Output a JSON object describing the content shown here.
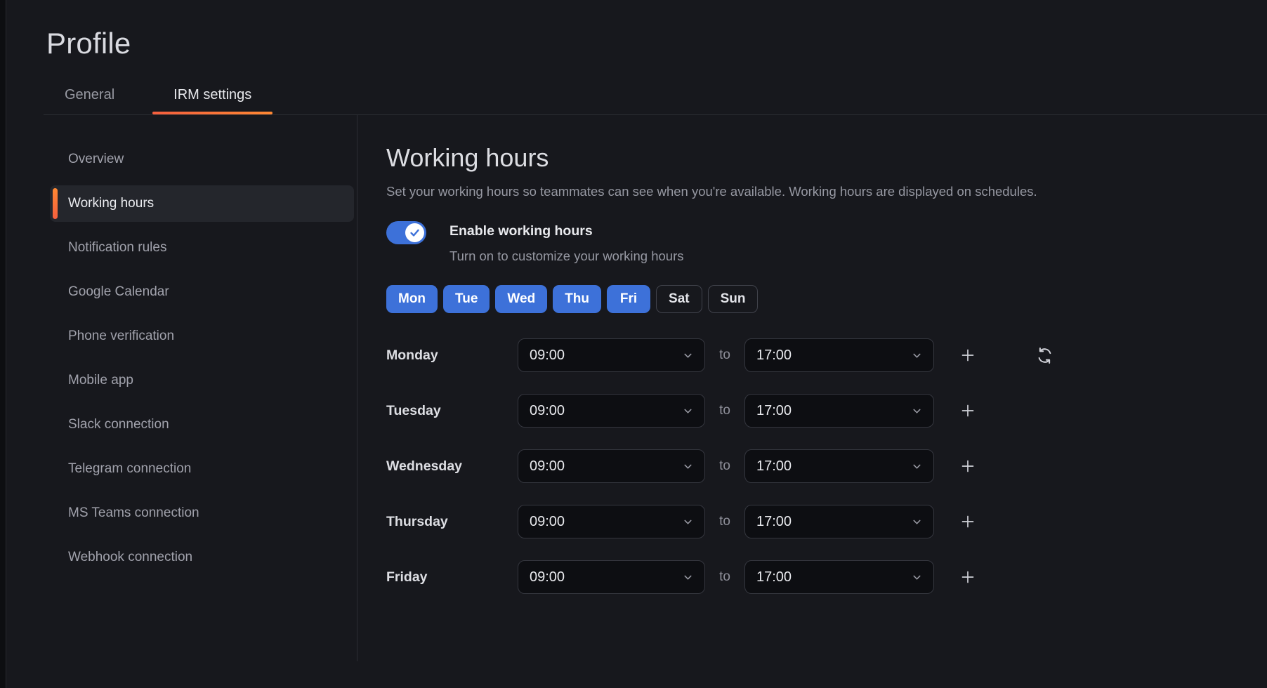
{
  "page_title": "Profile",
  "tabs": [
    {
      "label": "General",
      "active": false
    },
    {
      "label": "IRM settings",
      "active": true
    }
  ],
  "sidebar": {
    "items": [
      {
        "label": "Overview",
        "active": false
      },
      {
        "label": "Working hours",
        "active": true
      },
      {
        "label": "Notification rules",
        "active": false
      },
      {
        "label": "Google Calendar",
        "active": false
      },
      {
        "label": "Phone verification",
        "active": false
      },
      {
        "label": "Mobile app",
        "active": false
      },
      {
        "label": "Slack connection",
        "active": false
      },
      {
        "label": "Telegram connection",
        "active": false
      },
      {
        "label": "MS Teams connection",
        "active": false
      },
      {
        "label": "Webhook connection",
        "active": false
      }
    ]
  },
  "working_hours": {
    "heading": "Working hours",
    "description": "Set your working hours so teammates can see when you're available. Working hours are displayed on schedules.",
    "toggle": {
      "enabled": true,
      "label": "Enable working hours",
      "help_text": "Turn on to customize your working hours"
    },
    "day_pills": [
      {
        "label": "Mon",
        "selected": true
      },
      {
        "label": "Tue",
        "selected": true
      },
      {
        "label": "Wed",
        "selected": true
      },
      {
        "label": "Thu",
        "selected": true
      },
      {
        "label": "Fri",
        "selected": true
      },
      {
        "label": "Sat",
        "selected": false
      },
      {
        "label": "Sun",
        "selected": false
      }
    ],
    "separator_word": "to",
    "rows": [
      {
        "day": "Monday",
        "start": "09:00",
        "end": "17:00",
        "has_add": true,
        "has_reset": true
      },
      {
        "day": "Tuesday",
        "start": "09:00",
        "end": "17:00",
        "has_add": true,
        "has_reset": false
      },
      {
        "day": "Wednesday",
        "start": "09:00",
        "end": "17:00",
        "has_add": true,
        "has_reset": false
      },
      {
        "day": "Thursday",
        "start": "09:00",
        "end": "17:00",
        "has_add": true,
        "has_reset": false
      },
      {
        "day": "Friday",
        "start": "09:00",
        "end": "17:00",
        "has_add": true,
        "has_reset": false
      }
    ]
  },
  "icons": {
    "toggle_knob": "check-icon",
    "select": "chevron-down-icon",
    "add": "plus-icon",
    "reset": "sync-icon"
  },
  "colors": {
    "accent_orange_start": "#f55f3e",
    "accent_orange_end": "#ff8833",
    "primary_blue": "#3d71d9",
    "background": "#17181d",
    "panel_active": "#24262c",
    "input_background": "#0d0e12"
  }
}
